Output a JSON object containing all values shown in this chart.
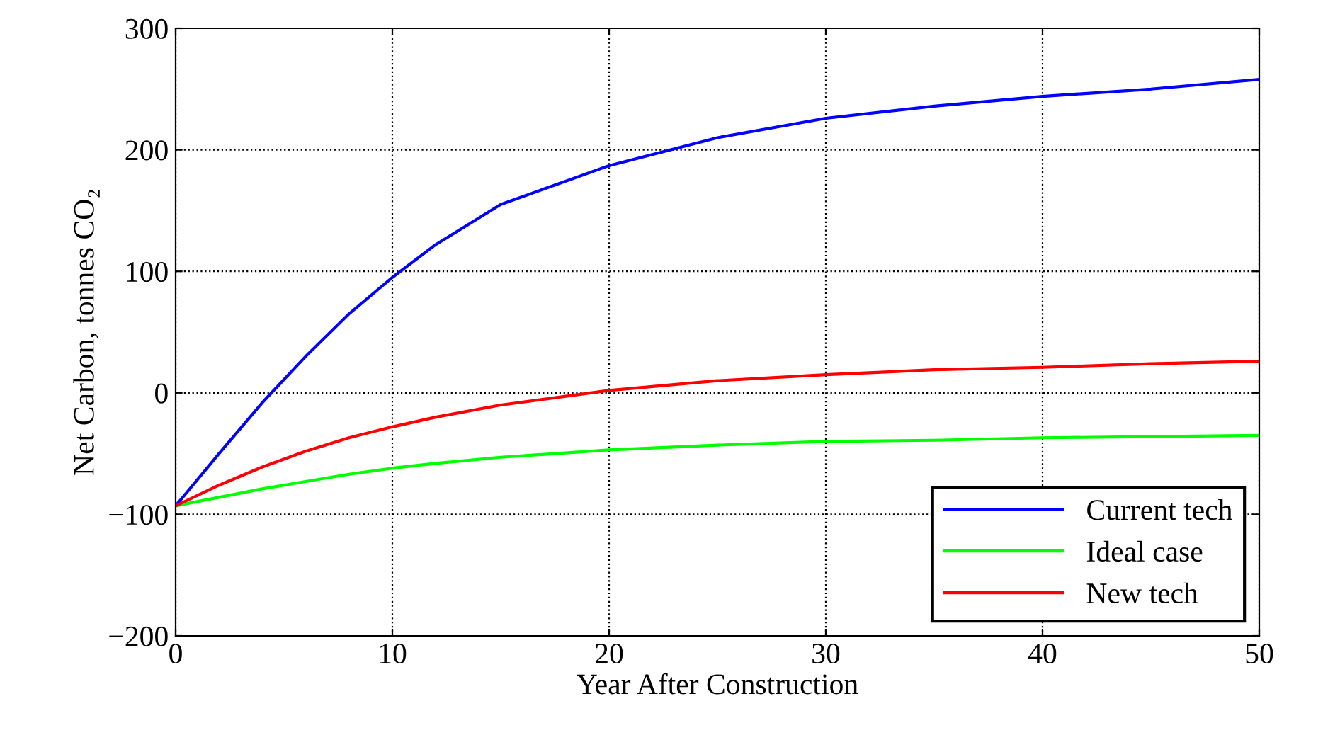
{
  "chart_data": {
    "type": "line",
    "xlabel": "Year After Construction",
    "ylabel": "Net Carbon, tonnes CO₂",
    "x": [
      0,
      2,
      4,
      6,
      8,
      10,
      12,
      15,
      20,
      25,
      30,
      35,
      40,
      45,
      50
    ],
    "series": [
      {
        "name": "Current tech",
        "color": "#0000ff",
        "values": [
          -93,
          -50,
          -8,
          30,
          65,
          95,
          122,
          155,
          187,
          210,
          226,
          236,
          244,
          250,
          258
        ]
      },
      {
        "name": "Ideal case",
        "color": "#00ff00",
        "values": [
          -93,
          -86,
          -79,
          -73,
          -67,
          -62,
          -58,
          -53,
          -47,
          -43,
          -40,
          -39,
          -37,
          -36,
          -35
        ]
      },
      {
        "name": "New tech",
        "color": "#ff0000",
        "values": [
          -93,
          -76,
          -61,
          -48,
          -37,
          -28,
          -20,
          -10,
          2,
          10,
          15,
          19,
          21,
          24,
          26
        ]
      }
    ],
    "xlim": [
      0,
      50
    ],
    "ylim": [
      -200,
      300
    ],
    "xticks": [
      0,
      10,
      20,
      30,
      40,
      50
    ],
    "yticks": [
      -200,
      -100,
      0,
      100,
      200,
      300
    ],
    "grid": true,
    "legend": "bottom right",
    "marker": "none",
    "line_style": "solid"
  }
}
